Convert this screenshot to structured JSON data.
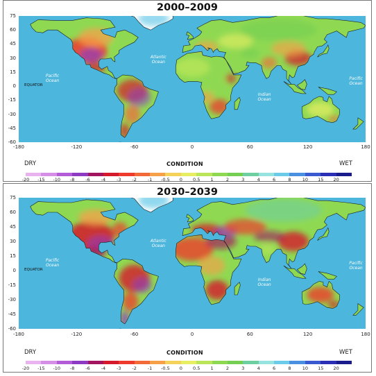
{
  "panels": [
    {
      "title": "2000–2009",
      "labels": {
        "pacific_left": "Pacific\nOcean",
        "atlantic": "Atlantic\nOcean",
        "indian": "Indian\nOcean",
        "pacific_right": "Pacific\nOcean",
        "equator": "EQUATOR"
      },
      "climate": "current"
    },
    {
      "title": "2030–2039",
      "labels": {
        "pacific_left": "Pacific\nOcean",
        "atlantic": "Atlantic\nOcean",
        "indian": "Indian\nOcean",
        "pacific_right": "Pacific\nOcean",
        "equator": "EQUATOR"
      },
      "climate": "future"
    }
  ],
  "y_ticks": [
    "75",
    "60",
    "45",
    "30",
    "15",
    "0",
    "-15",
    "-30",
    "-45",
    "-60"
  ],
  "x_ticks": [
    "-180",
    "-120",
    "-60",
    "0",
    "60",
    "120",
    "180"
  ],
  "legend": {
    "dry_label": "DRY",
    "wet_label": "WET",
    "title": "CONDITION",
    "values": [
      "-20",
      "-15",
      "-10",
      "-8",
      "-6",
      "-4",
      "-3",
      "-2",
      "-1",
      "-0.5",
      "0",
      "0.5",
      "1",
      "2",
      "3",
      "4",
      "6",
      "8",
      "10",
      "15",
      "20"
    ],
    "colors": [
      "#e9b3ef",
      "#d58fe6",
      "#b45cd8",
      "#8e3bc4",
      "#a3155f",
      "#d41a2b",
      "#ee3b2d",
      "#f26a3a",
      "#f7a04a",
      "#f5d35a",
      "#e8ee62",
      "#bbe65a",
      "#8fd952",
      "#74cf52",
      "#6ecfa0",
      "#97e3e0",
      "#6ccbe8",
      "#4a8fe0",
      "#3a5ad1",
      "#2a2fb5",
      "#1a1c8e"
    ]
  },
  "colors": {
    "ocean": "#4cb6dc",
    "border": "#1e1e1e"
  }
}
